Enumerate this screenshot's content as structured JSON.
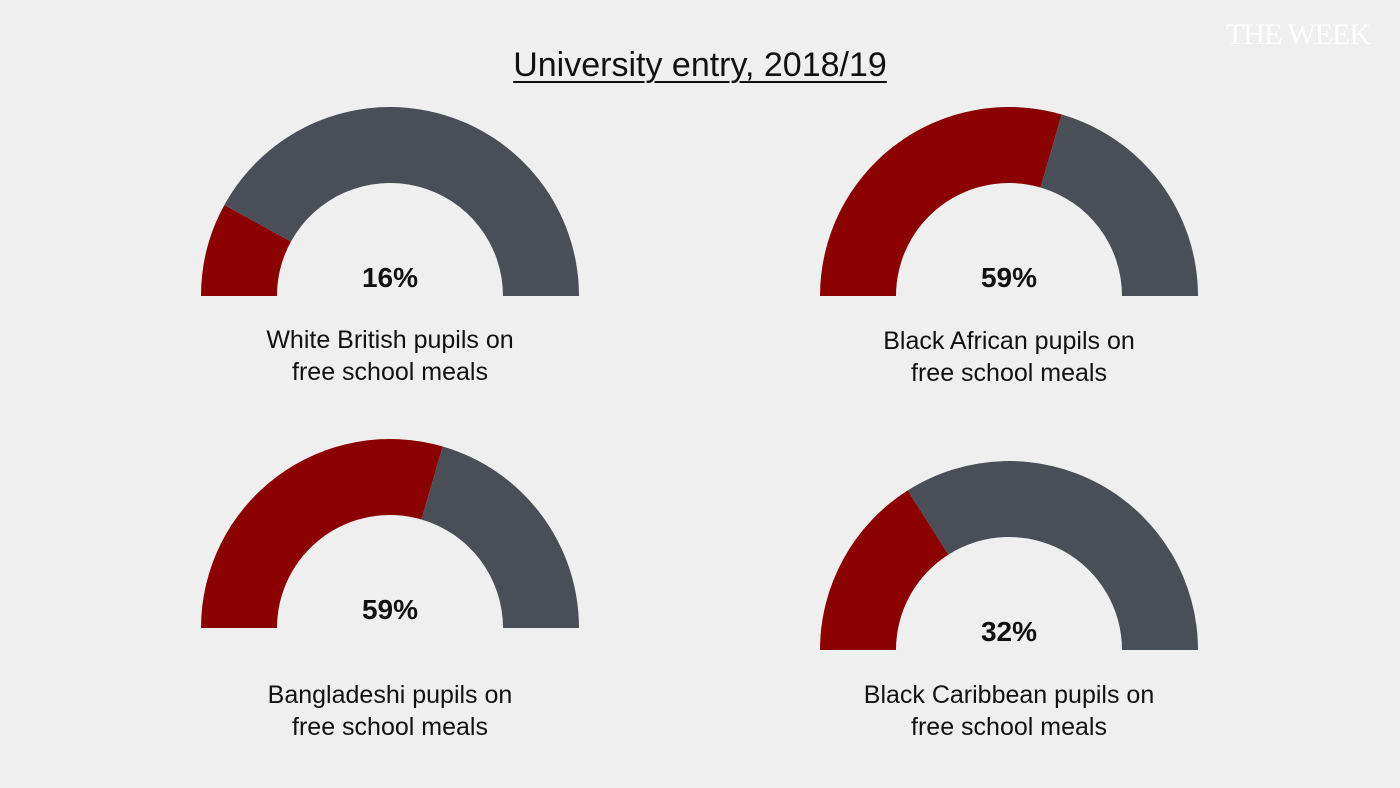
{
  "brand": "THE WEEK",
  "chart_data": {
    "type": "gauge",
    "title": "University entry, 2018/19",
    "colors": {
      "value": "#8b0000",
      "remainder": "#4a4f57"
    },
    "gauges": [
      {
        "label_line1": "White British pupils on",
        "label_line2": "free school meals",
        "value": 16,
        "value_text": "16%"
      },
      {
        "label_line1": "Black African pupils on",
        "label_line2": "free school meals",
        "value": 59,
        "value_text": "59%"
      },
      {
        "label_line1": "Bangladeshi pupils on",
        "label_line2": "free school meals",
        "value": 59,
        "value_text": "59%"
      },
      {
        "label_line1": "Black Caribbean pupils on",
        "label_line2": "free school meals",
        "value": 32,
        "value_text": "32%"
      }
    ]
  }
}
